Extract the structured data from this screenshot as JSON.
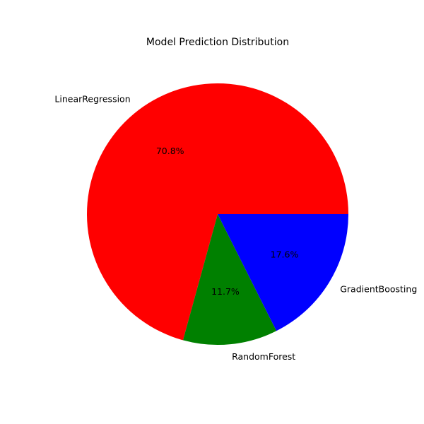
{
  "chart_data": {
    "type": "pie",
    "title": "Model Prediction Distribution",
    "categories": [
      "LinearRegression",
      "RandomForest",
      "GradientBoosting"
    ],
    "values": [
      70.8,
      11.7,
      17.6
    ],
    "percent_labels": [
      "70.8%",
      "11.7%",
      "17.6%"
    ],
    "colors": [
      "#ff0000",
      "#008000",
      "#0000ff"
    ],
    "start_angle_deg": 0,
    "direction": "counterclockwise"
  }
}
